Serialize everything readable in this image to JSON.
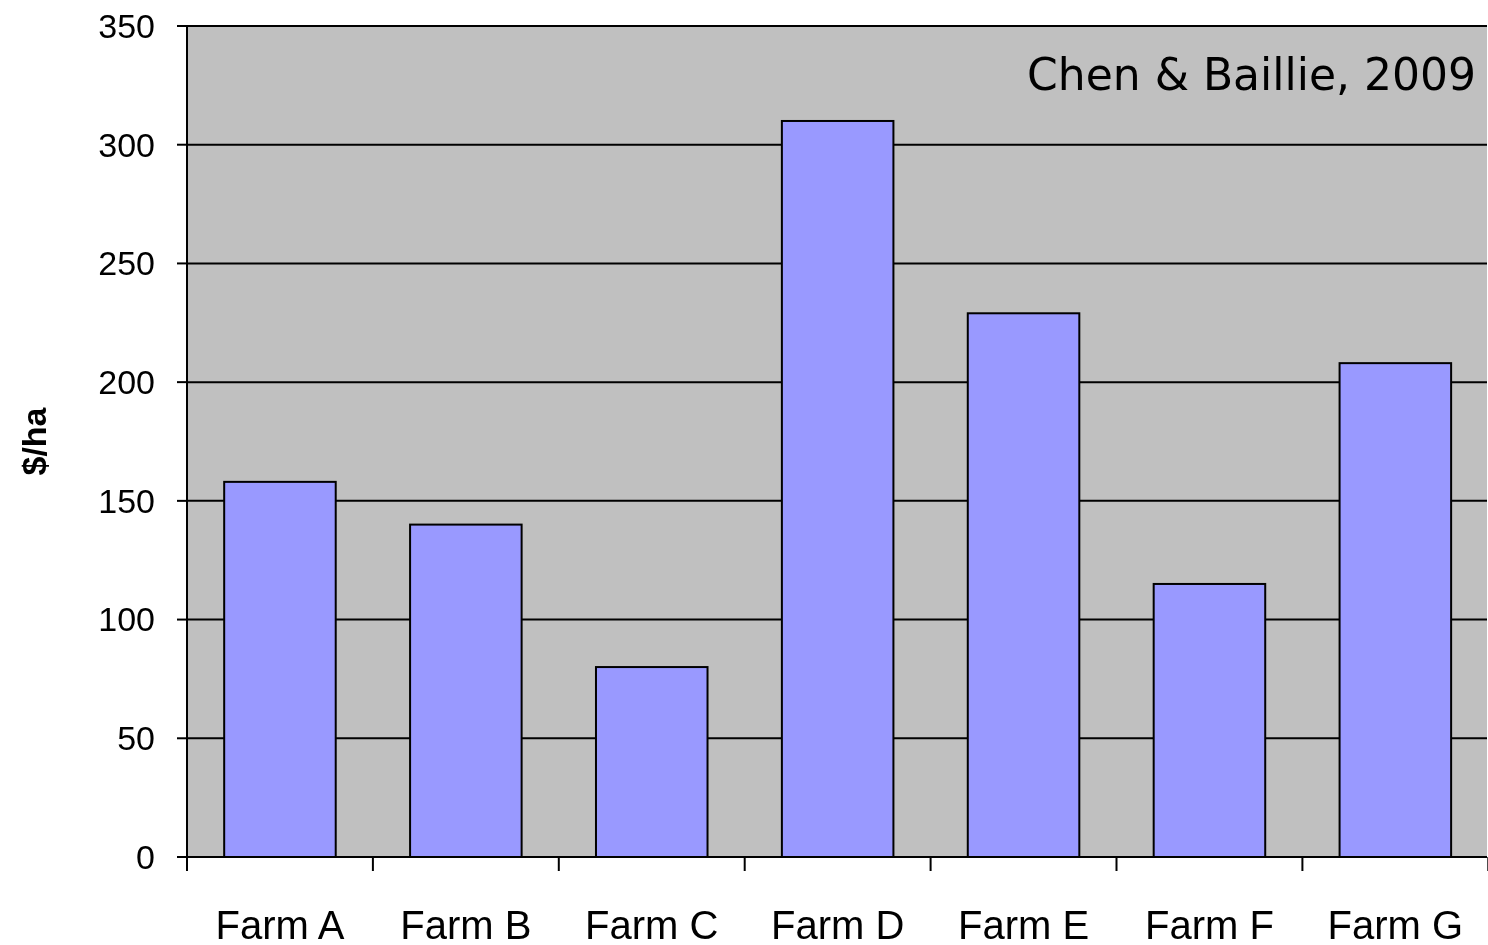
{
  "chart_data": {
    "type": "bar",
    "ylabel": "$/ha",
    "categories": [
      "Farm A",
      "Farm B",
      "Farm C",
      "Farm D",
      "Farm E",
      "Farm F",
      "Farm G"
    ],
    "values": [
      158,
      140,
      80,
      310,
      229,
      115,
      208
    ],
    "color": "#9999ff",
    "ylim": [
      0,
      350
    ],
    "yticks": [
      0,
      50,
      100,
      150,
      200,
      250,
      300,
      350
    ],
    "grid": "y",
    "annotations": [
      "Chen & Baillie, 2009"
    ]
  }
}
